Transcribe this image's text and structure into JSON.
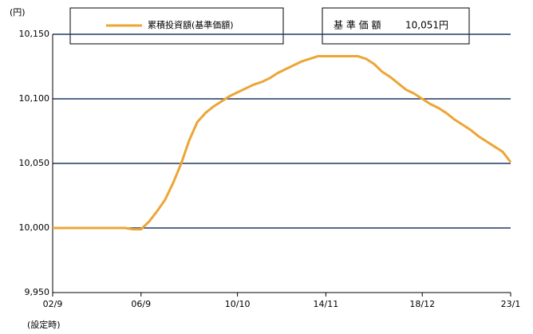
{
  "chart_data": {
    "type": "line",
    "ylabel": "(円)",
    "x_note": "(設定時)",
    "annotation_label": "基 準 価 額",
    "annotation_value": "10,051円",
    "categories": [
      "02/9",
      null,
      null,
      null,
      null,
      null,
      null,
      null,
      null,
      null,
      null,
      "06/9",
      null,
      null,
      null,
      null,
      null,
      null,
      null,
      null,
      null,
      null,
      null,
      "10/10",
      null,
      null,
      null,
      null,
      null,
      null,
      null,
      null,
      null,
      null,
      "14/11",
      null,
      null,
      null,
      null,
      null,
      null,
      null,
      null,
      null,
      null,
      null,
      "18/12",
      null,
      null,
      null,
      null,
      null,
      null,
      null,
      null,
      null,
      null,
      "23/1"
    ],
    "series": [
      {
        "name": "累積投資額(基準価額)",
        "color": "#eda535",
        "values": [
          10000,
          10000,
          10000,
          10000,
          10000,
          10000,
          10000,
          10000,
          10000,
          10000,
          9999,
          9999,
          10005,
          10013,
          10022,
          10035,
          10050,
          10068,
          10082,
          10089,
          10094,
          10098,
          10102,
          10105,
          10108,
          10111,
          10113,
          10116,
          10120,
          10123,
          10126,
          10129,
          10131,
          10133,
          10133,
          10133,
          10133,
          10133,
          10133,
          10131,
          10127,
          10121,
          10117,
          10112,
          10107,
          10104,
          10100,
          10096,
          10093,
          10089,
          10084,
          10080,
          10076,
          10071,
          10067,
          10063,
          10059,
          10051
        ]
      }
    ],
    "ylim": [
      9950,
      10150
    ],
    "yticks": [
      {
        "value": 9950,
        "label": "9,950"
      },
      {
        "value": 10000,
        "label": "10,000"
      },
      {
        "value": 10050,
        "label": "10,050"
      },
      {
        "value": 10100,
        "label": "10,100"
      },
      {
        "value": 10150,
        "label": "10,150"
      }
    ],
    "grid": true
  }
}
